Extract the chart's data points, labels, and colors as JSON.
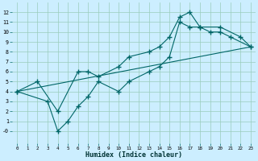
{
  "xlabel": "Humidex (Indice chaleur)",
  "bg_color": "#cceeff",
  "grid_color": "#99ccbb",
  "line_color": "#006666",
  "xlim": [
    -0.5,
    23.5
  ],
  "ylim": [
    -1.2,
    13
  ],
  "xticks": [
    0,
    1,
    2,
    3,
    4,
    5,
    6,
    7,
    8,
    9,
    10,
    11,
    12,
    13,
    14,
    15,
    16,
    17,
    18,
    19,
    20,
    21,
    22,
    23
  ],
  "yticks": [
    0,
    1,
    2,
    3,
    4,
    5,
    6,
    7,
    8,
    9,
    10,
    11,
    12
  ],
  "ytick_labels": [
    "-0",
    "1",
    "2",
    "3",
    "4",
    "5",
    "6",
    "7",
    "8",
    "9",
    "10",
    "11",
    "12"
  ],
  "line1_x": [
    0,
    2,
    4,
    6,
    7,
    8,
    10,
    11,
    13,
    14,
    15,
    16,
    17,
    18,
    19,
    20,
    21,
    23
  ],
  "line1_y": [
    4,
    5,
    2,
    6,
    6,
    5.5,
    6.5,
    7.5,
    8,
    8.5,
    9.5,
    11.5,
    12,
    10.5,
    10,
    10,
    9.5,
    8.5
  ],
  "line2_x": [
    0,
    3,
    4,
    5,
    6,
    7,
    8,
    10,
    11,
    13,
    14,
    15,
    16,
    17,
    18,
    20,
    22,
    23
  ],
  "line2_y": [
    4,
    3,
    0,
    1,
    2.5,
    3.5,
    5,
    4,
    5,
    6,
    6.5,
    7.5,
    11,
    10.5,
    10.5,
    10.5,
    9.5,
    8.5
  ],
  "line3_x": [
    0,
    23
  ],
  "line3_y": [
    4,
    8.5
  ]
}
